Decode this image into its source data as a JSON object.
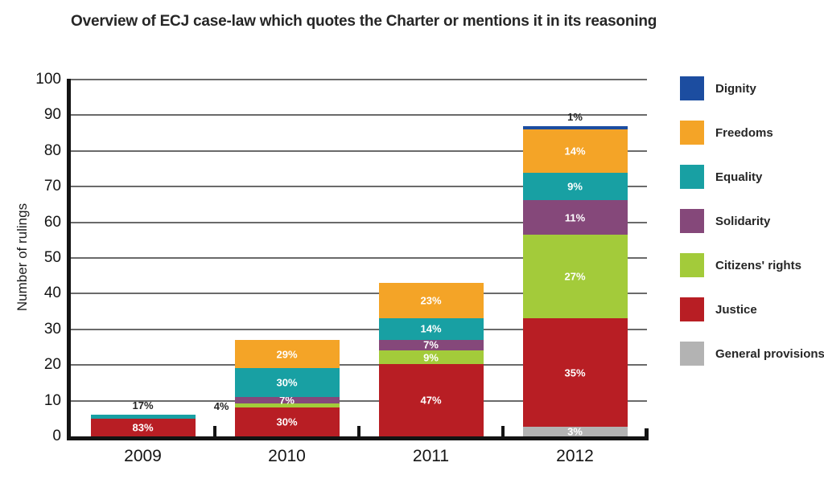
{
  "chart_data": {
    "type": "bar",
    "stacked": true,
    "title": "Overview of ECJ case-law which quotes the Charter or mentions it in its reasoning",
    "xlabel": "",
    "ylabel": "Number of rulings",
    "ylim": [
      0,
      100
    ],
    "yticks": [
      0,
      10,
      20,
      30,
      40,
      50,
      60,
      70,
      80,
      90,
      100
    ],
    "grid": true,
    "legend_position": "right",
    "categories": [
      "2009",
      "2010",
      "2011",
      "2012"
    ],
    "totals": [
      6,
      27,
      43,
      87
    ],
    "series_colors": {
      "Dignity": "#1c4da0",
      "Freedoms": "#f4a427",
      "Equality": "#18a0a3",
      "Solidarity": "#85487a",
      "Citizens' rights": "#a3cb3a",
      "Justice": "#b81e24",
      "General provisions": "#b3b3b3"
    },
    "legend": [
      {
        "label": "Dignity",
        "color": "#1c4da0"
      },
      {
        "label": "Freedoms",
        "color": "#f4a427"
      },
      {
        "label": "Equality",
        "color": "#18a0a3"
      },
      {
        "label": "Solidarity",
        "color": "#85487a"
      },
      {
        "label": "Citizens' rights",
        "color": "#a3cb3a"
      },
      {
        "label": "Justice",
        "color": "#b81e24"
      },
      {
        "label": "General provisions",
        "color": "#b3b3b3"
      }
    ],
    "columns": [
      {
        "category": "2009",
        "total": 6,
        "segments": [
          {
            "series": "Justice",
            "pct": 83,
            "label": "83%",
            "label_pos": "inside"
          },
          {
            "series": "Equality",
            "pct": 17,
            "label": "17%",
            "label_pos": "above"
          }
        ]
      },
      {
        "category": "2010",
        "total": 27,
        "segments": [
          {
            "series": "Justice",
            "pct": 30,
            "label": "30%",
            "label_pos": "inside"
          },
          {
            "series": "Citizens' rights",
            "pct": 4,
            "label": "4%",
            "label_pos": "left"
          },
          {
            "series": "Solidarity",
            "pct": 7,
            "label": "7%",
            "label_pos": "inside"
          },
          {
            "series": "Equality",
            "pct": 30,
            "label": "30%",
            "label_pos": "inside"
          },
          {
            "series": "Freedoms",
            "pct": 29,
            "label": "29%",
            "label_pos": "inside"
          }
        ]
      },
      {
        "category": "2011",
        "total": 43,
        "segments": [
          {
            "series": "Justice",
            "pct": 47,
            "label": "47%",
            "label_pos": "inside"
          },
          {
            "series": "Citizens' rights",
            "pct": 9,
            "label": "9%",
            "label_pos": "inside"
          },
          {
            "series": "Solidarity",
            "pct": 7,
            "label": "7%",
            "label_pos": "inside"
          },
          {
            "series": "Equality",
            "pct": 14,
            "label": "14%",
            "label_pos": "inside"
          },
          {
            "series": "Freedoms",
            "pct": 23,
            "label": "23%",
            "label_pos": "inside"
          }
        ]
      },
      {
        "category": "2012",
        "total": 87,
        "segments": [
          {
            "series": "General provisions",
            "pct": 3,
            "label": "3%",
            "label_pos": "inside"
          },
          {
            "series": "Justice",
            "pct": 35,
            "label": "35%",
            "label_pos": "inside"
          },
          {
            "series": "Citizens' rights",
            "pct": 27,
            "label": "27%",
            "label_pos": "inside"
          },
          {
            "series": "Solidarity",
            "pct": 11,
            "label": "11%",
            "label_pos": "inside"
          },
          {
            "series": "Equality",
            "pct": 9,
            "label": "9%",
            "label_pos": "inside"
          },
          {
            "series": "Freedoms",
            "pct": 14,
            "label": "14%",
            "label_pos": "inside"
          },
          {
            "series": "Dignity",
            "pct": 1,
            "label": "1%",
            "label_pos": "above"
          }
        ]
      }
    ]
  }
}
